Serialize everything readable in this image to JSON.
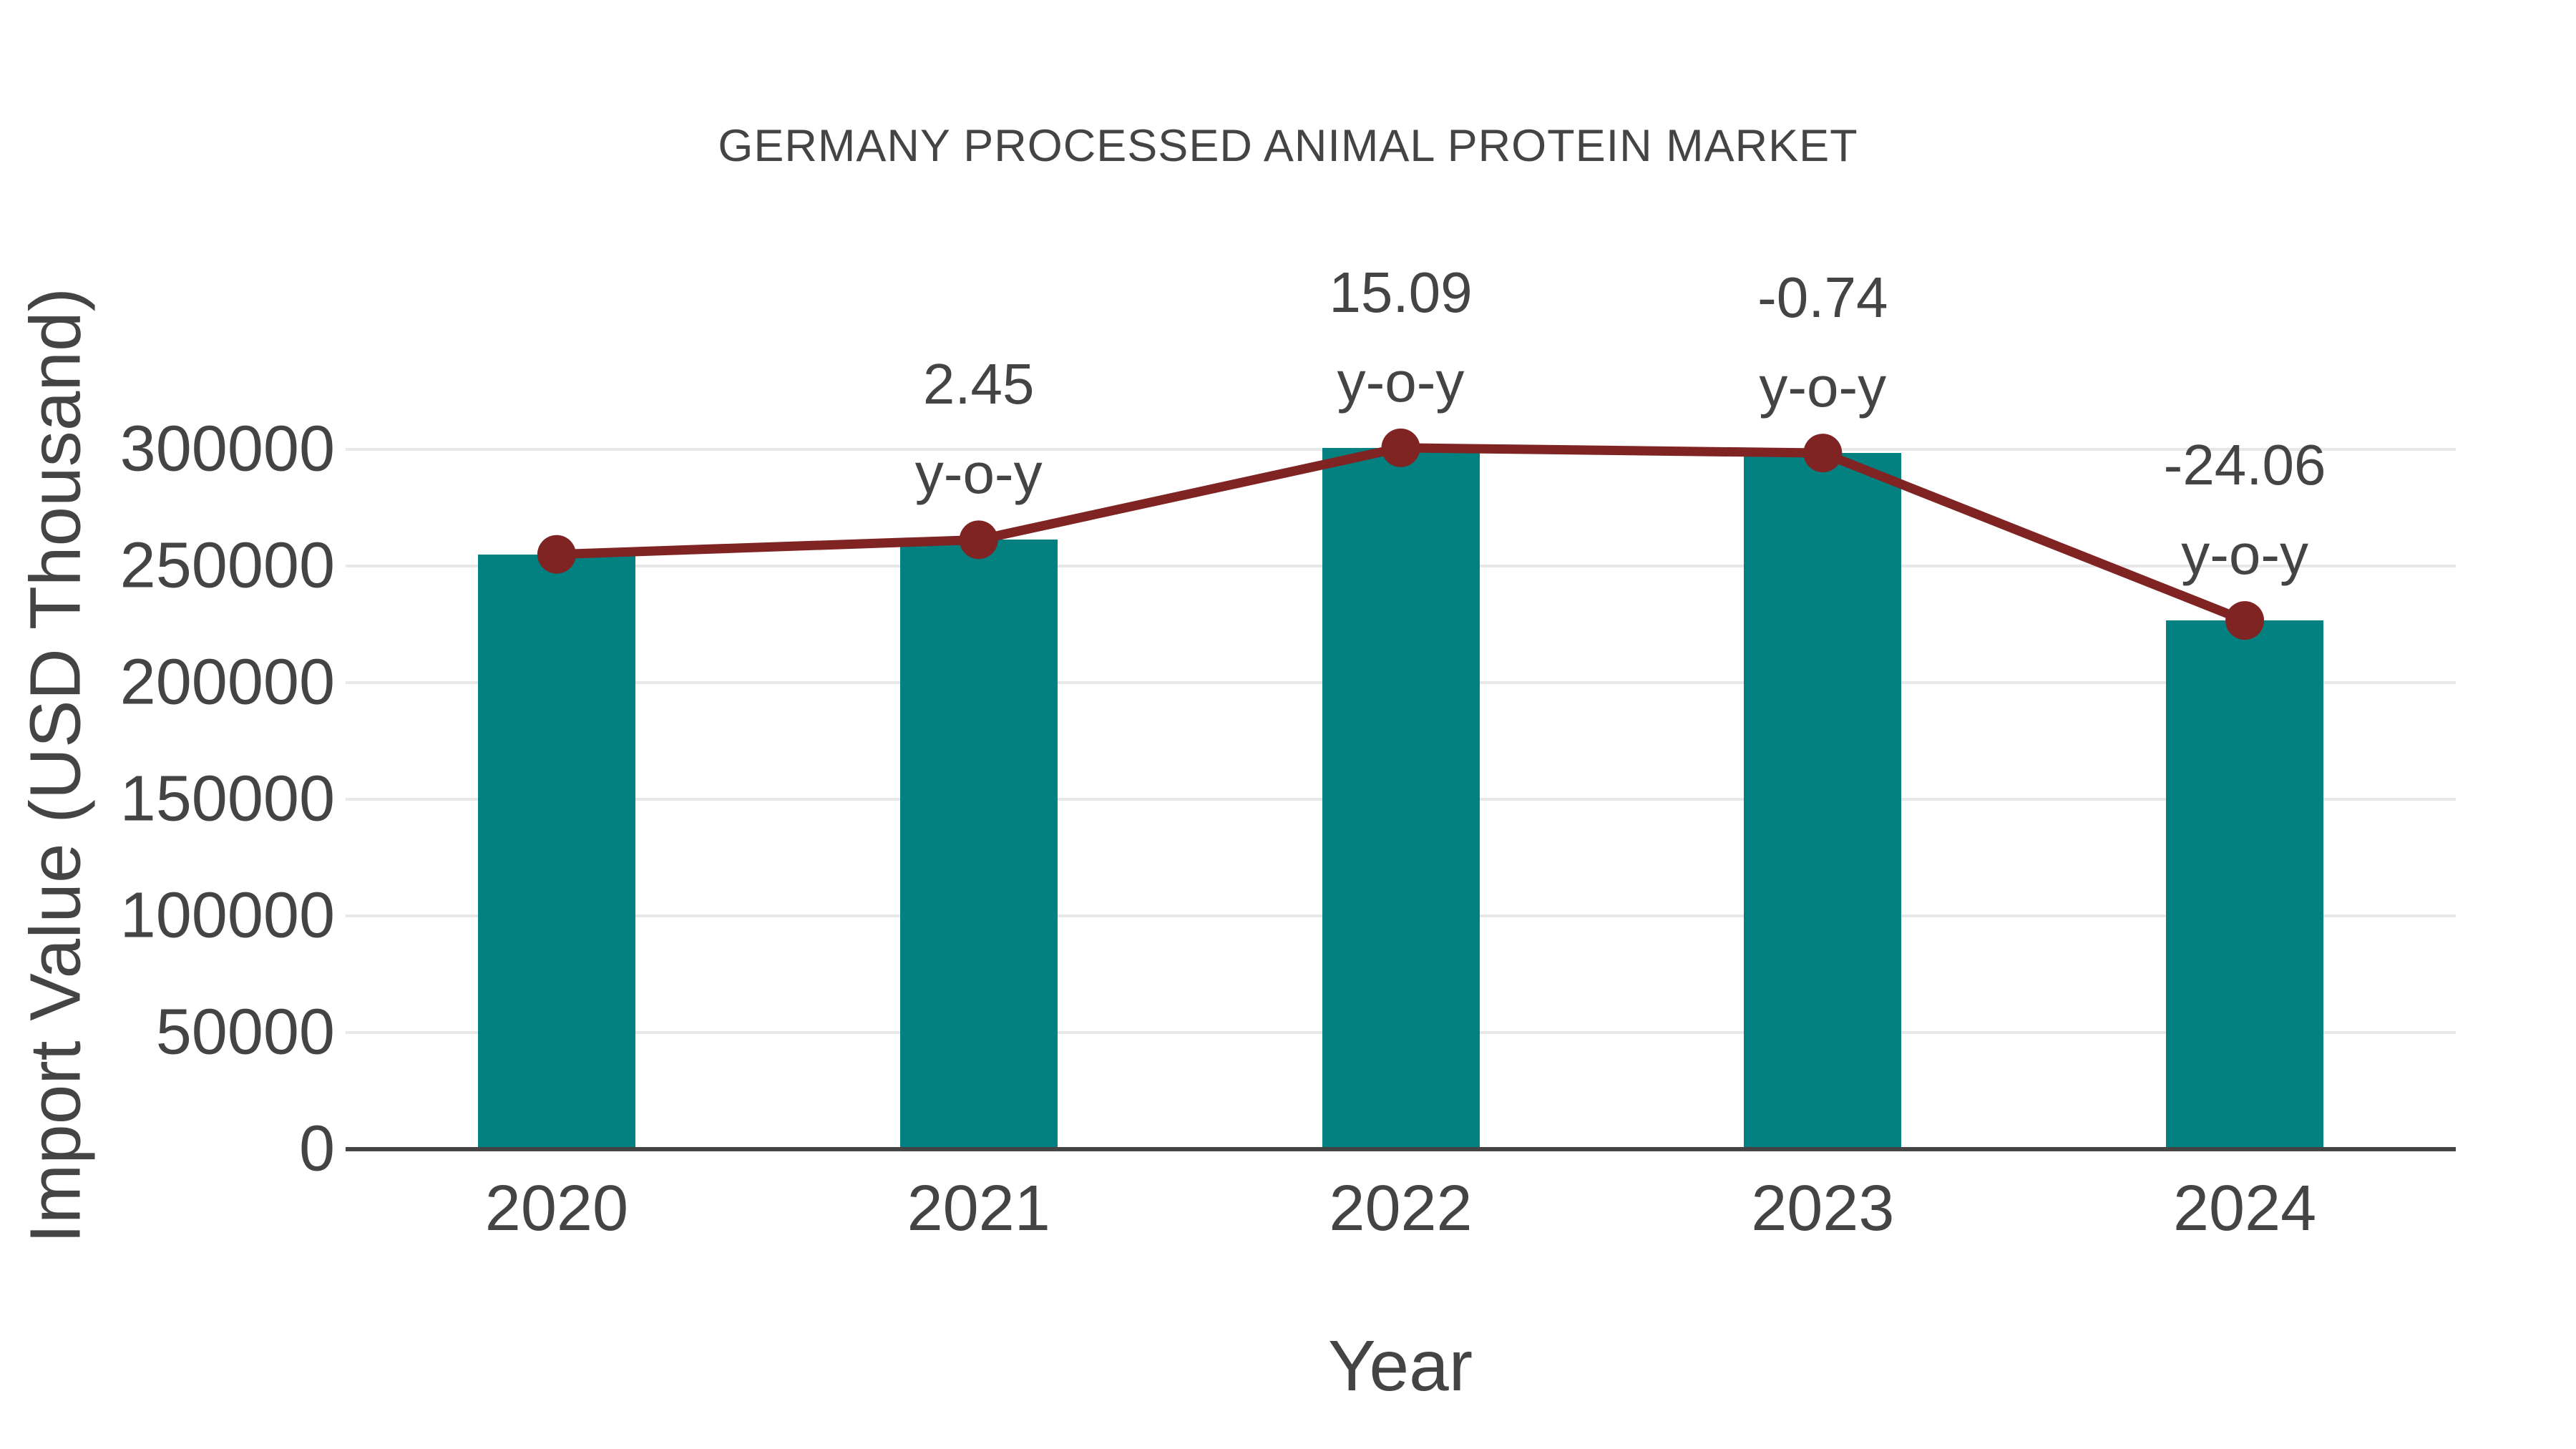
{
  "chart": {
    "title": "GERMANY PROCESSED ANIMAL PROTEIN MARKET",
    "xlabel": "Year",
    "ylabel": "Import Value (USD Thousand)"
  },
  "colors": {
    "bar": "#038080",
    "line": "#7f2323",
    "marker": "#7f2323",
    "text": "#444444",
    "grid": "#e8e8e8",
    "axis": "#444444",
    "background": "#ffffff"
  },
  "chart_data": {
    "type": "bar",
    "title": "GERMANY PROCESSED ANIMAL PROTEIN MARKET",
    "xlabel": "Year",
    "ylabel": "Import Value (USD Thousand)",
    "categories": [
      "2020",
      "2021",
      "2022",
      "2023",
      "2024"
    ],
    "series": [
      {
        "name": "Import Value (USD Thousand)",
        "type": "bar",
        "values": [
          255000,
          261250,
          300670,
          298440,
          226640
        ]
      },
      {
        "name": "y-o-y change (%)",
        "type": "line",
        "values": [
          null,
          2.45,
          15.09,
          -0.74,
          -24.06
        ]
      }
    ],
    "annotations": [
      {
        "category": "2021",
        "lines": [
          "2.45",
          "y-o-y"
        ]
      },
      {
        "category": "2022",
        "lines": [
          "15.09",
          "y-o-y"
        ]
      },
      {
        "category": "2023",
        "lines": [
          "-0.74",
          "y-o-y"
        ]
      },
      {
        "category": "2024",
        "lines": [
          "-24.06",
          "y-o-y"
        ]
      }
    ],
    "yticks": [
      0,
      50000,
      100000,
      150000,
      200000,
      250000,
      300000
    ],
    "ylim": [
      0,
      320000
    ],
    "grid": true,
    "legend": false
  }
}
